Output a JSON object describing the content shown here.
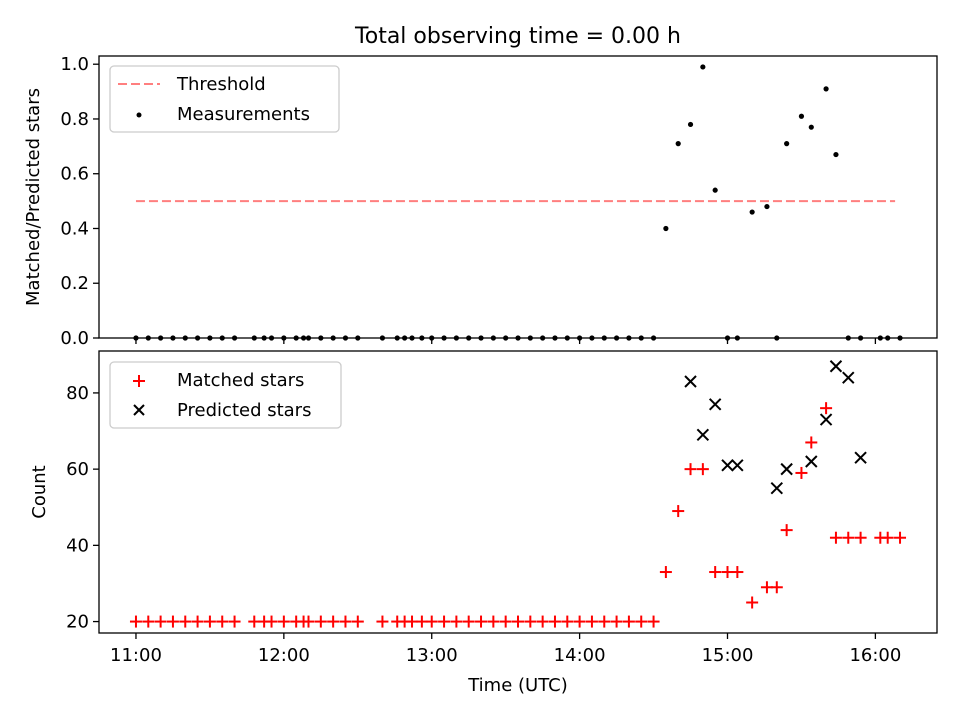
{
  "figure": {
    "title": "Total observing time = 0.00 h",
    "xlabel": "Time (UTC)",
    "xticks": [
      "11:00",
      "12:00",
      "13:00",
      "14:00",
      "15:00",
      "16:00"
    ]
  },
  "colors": {
    "threshold": "#ff7f7f",
    "measurements": "#000000",
    "matched": "#ff0000",
    "predicted": "#000000"
  },
  "chart_data": [
    {
      "type": "scatter",
      "ylabel": "Matched/Predicted stars",
      "xlim": [
        "10:45",
        "16:25"
      ],
      "ylim": [
        0,
        1.03
      ],
      "yticks": [
        "0.0",
        "0.2",
        "0.4",
        "0.6",
        "0.8",
        "1.0"
      ],
      "legend": {
        "placement": "top-left",
        "entries": [
          "Threshold",
          "Measurements"
        ]
      },
      "series": [
        {
          "name": "Threshold",
          "style": "dashed-line",
          "x": [
            "11:00",
            "16:08"
          ],
          "y": [
            0.5,
            0.5
          ]
        },
        {
          "name": "Measurements",
          "style": "dot",
          "x": [
            "11:00",
            "11:05",
            "11:10",
            "11:15",
            "11:20",
            "11:25",
            "11:30",
            "11:35",
            "11:40",
            "11:48",
            "11:52",
            "11:55",
            "12:00",
            "12:05",
            "12:08",
            "12:10",
            "12:15",
            "12:20",
            "12:25",
            "12:30",
            "12:40",
            "12:46",
            "12:49",
            "12:52",
            "12:56",
            "13:00",
            "13:05",
            "13:10",
            "13:15",
            "13:20",
            "13:25",
            "13:30",
            "13:35",
            "13:40",
            "13:45",
            "13:50",
            "13:55",
            "14:00",
            "14:05",
            "14:10",
            "14:15",
            "14:20",
            "14:25",
            "14:30",
            "14:35",
            "14:40",
            "14:45",
            "14:50",
            "14:55",
            "15:00",
            "15:04",
            "15:10",
            "15:16",
            "15:20",
            "15:24",
            "15:30",
            "15:34",
            "15:40",
            "15:44",
            "15:49",
            "15:54",
            "16:02",
            "16:05",
            "16:10"
          ],
          "y": [
            0,
            0,
            0,
            0,
            0,
            0,
            0,
            0,
            0,
            0,
            0,
            0,
            0,
            0,
            0,
            0,
            0,
            0,
            0,
            0,
            0,
            0,
            0,
            0,
            0,
            0,
            0,
            0,
            0,
            0,
            0,
            0,
            0,
            0,
            0,
            0,
            0,
            0,
            0,
            0,
            0,
            0,
            0,
            0,
            0.4,
            0.71,
            0.78,
            0.99,
            0.54,
            0,
            0,
            0.46,
            0.48,
            0,
            0.71,
            0.81,
            0.77,
            0.91,
            0.67,
            0,
            0,
            0,
            0,
            0
          ]
        }
      ]
    },
    {
      "type": "scatter",
      "ylabel": "Count",
      "xlim": [
        "10:45",
        "16:25"
      ],
      "ylim": [
        17,
        91
      ],
      "yticks": [
        "20",
        "40",
        "60",
        "80"
      ],
      "legend": {
        "placement": "top-left",
        "entries": [
          "Matched stars",
          "Predicted stars"
        ]
      },
      "series": [
        {
          "name": "Matched stars",
          "marker": "+",
          "x": [
            "11:00",
            "11:05",
            "11:10",
            "11:15",
            "11:20",
            "11:25",
            "11:30",
            "11:35",
            "11:40",
            "11:48",
            "11:52",
            "11:55",
            "12:00",
            "12:05",
            "12:08",
            "12:10",
            "12:15",
            "12:20",
            "12:25",
            "12:30",
            "12:40",
            "12:46",
            "12:49",
            "12:52",
            "12:56",
            "13:00",
            "13:05",
            "13:10",
            "13:15",
            "13:20",
            "13:25",
            "13:30",
            "13:35",
            "13:40",
            "13:45",
            "13:50",
            "13:55",
            "14:00",
            "14:05",
            "14:10",
            "14:15",
            "14:20",
            "14:25",
            "14:30",
            "14:35",
            "14:40",
            "14:45",
            "14:50",
            "14:55",
            "15:00",
            "15:04",
            "15:10",
            "15:16",
            "15:20",
            "15:24",
            "15:30",
            "15:34",
            "15:40",
            "15:44",
            "15:49",
            "15:54",
            "16:02",
            "16:05",
            "16:10"
          ],
          "y": [
            20,
            20,
            20,
            20,
            20,
            20,
            20,
            20,
            20,
            20,
            20,
            20,
            20,
            20,
            20,
            20,
            20,
            20,
            20,
            20,
            20,
            20,
            20,
            20,
            20,
            20,
            20,
            20,
            20,
            20,
            20,
            20,
            20,
            20,
            20,
            20,
            20,
            20,
            20,
            20,
            20,
            20,
            20,
            20,
            33,
            49,
            60,
            60,
            33,
            33,
            33,
            25,
            29,
            29,
            44,
            59,
            67,
            76,
            42,
            42,
            42,
            42,
            42,
            42
          ]
        },
        {
          "name": "Predicted stars",
          "marker": "x",
          "x": [
            "14:45",
            "14:50",
            "14:55",
            "15:00",
            "15:04",
            "15:20",
            "15:24",
            "15:34",
            "15:40",
            "15:44",
            "15:49",
            "15:54"
          ],
          "y": [
            83,
            69,
            77,
            61,
            61,
            55,
            60,
            62,
            73,
            87,
            84,
            63
          ]
        }
      ]
    }
  ]
}
